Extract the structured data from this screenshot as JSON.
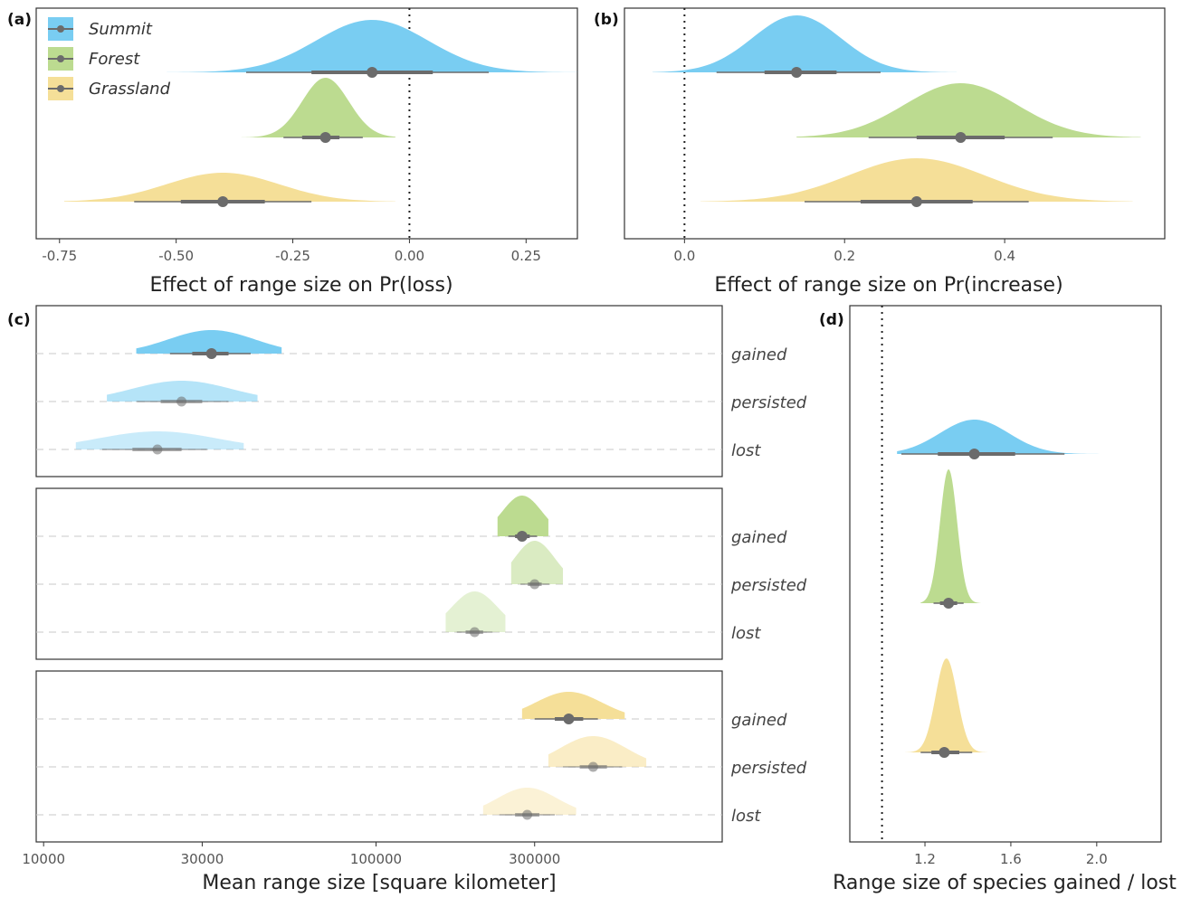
{
  "colors": {
    "summit": "#79cdf2",
    "forest": "#bcdb90",
    "grassland": "#f5df98",
    "point": "#6b6b6b"
  },
  "legend": [
    {
      "key": "summit",
      "label": "Summit"
    },
    {
      "key": "forest",
      "label": "Forest"
    },
    {
      "key": "grassland",
      "label": "Grassland"
    }
  ],
  "chart_data": [
    {
      "panel": "(a)",
      "type": "area",
      "xlabel": "Effect of range size on Pr(loss)",
      "xlim": [
        -0.8,
        0.36
      ],
      "xticks": [
        -0.75,
        -0.5,
        -0.25,
        0.0,
        0.25
      ],
      "xtick_labels": [
        "-0.75",
        "-0.50",
        "-0.25",
        "0.00",
        "0.25"
      ],
      "reference_line": 0,
      "series": [
        {
          "name": "Summit",
          "color": "summit",
          "mean": -0.08,
          "sd": 0.12,
          "min": -0.52,
          "max": 0.4,
          "median": -0.08,
          "inner": [
            -0.21,
            0.05
          ],
          "outer": [
            -0.35,
            0.17
          ]
        },
        {
          "name": "Forest",
          "color": "forest",
          "mean": -0.18,
          "sd": 0.05,
          "min": -0.36,
          "max": -0.03,
          "median": -0.18,
          "inner": [
            -0.23,
            -0.15
          ],
          "outer": [
            -0.27,
            -0.1
          ]
        },
        {
          "name": "Grassland",
          "color": "grassland",
          "mean": -0.4,
          "sd": 0.12,
          "min": -0.74,
          "max": -0.03,
          "median": -0.4,
          "inner": [
            -0.49,
            -0.31
          ],
          "outer": [
            -0.59,
            -0.21
          ]
        }
      ]
    },
    {
      "panel": "(b)",
      "type": "area",
      "xlabel": "Effect of range size on Pr(increase)",
      "xlim": [
        -0.075,
        0.6
      ],
      "xticks": [
        0.0,
        0.2,
        0.4
      ],
      "xtick_labels": [
        "0.0",
        "0.2",
        "0.4"
      ],
      "reference_line": 0,
      "series": [
        {
          "name": "Summit",
          "color": "summit",
          "mean": 0.14,
          "sd": 0.055,
          "min": -0.04,
          "max": 0.34,
          "median": 0.14,
          "inner": [
            0.1,
            0.19
          ],
          "outer": [
            0.04,
            0.245
          ]
        },
        {
          "name": "Forest",
          "color": "forest",
          "mean": 0.345,
          "sd": 0.07,
          "min": 0.14,
          "max": 0.57,
          "median": 0.345,
          "inner": [
            0.29,
            0.4
          ],
          "outer": [
            0.23,
            0.46
          ]
        },
        {
          "name": "Grassland",
          "color": "grassland",
          "mean": 0.29,
          "sd": 0.085,
          "min": 0.02,
          "max": 0.56,
          "median": 0.29,
          "inner": [
            0.22,
            0.36
          ],
          "outer": [
            0.15,
            0.43
          ]
        }
      ]
    },
    {
      "panel": "(c)",
      "type": "area",
      "xlabel": "Mean range size [square kilometer]",
      "xscale": "log",
      "xlim": [
        9500,
        1100000
      ],
      "xticks": [
        10000,
        30000,
        100000,
        300000
      ],
      "xtick_labels": [
        "10000",
        "30000",
        "100000",
        "300000"
      ],
      "row_labels": [
        "gained",
        "persisted",
        "lost"
      ],
      "groups": [
        {
          "name": "Summit",
          "color": "summit",
          "rows": [
            {
              "label": "gained",
              "median": 32000,
              "sd": 0.13,
              "min": 19000,
              "max": 52000,
              "inner": [
                28000,
                36000
              ],
              "outer": [
                24000,
                42000
              ],
              "opacity": 1.0
            },
            {
              "label": "persisted",
              "median": 26000,
              "sd": 0.15,
              "min": 15500,
              "max": 44000,
              "inner": [
                22500,
                30000
              ],
              "outer": [
                19000,
                36000
              ],
              "opacity": 0.55
            },
            {
              "label": "lost",
              "median": 22000,
              "sd": 0.18,
              "min": 12500,
              "max": 40000,
              "inner": [
                18500,
                26000
              ],
              "outer": [
                15000,
                31000
              ],
              "opacity": 0.4
            }
          ]
        },
        {
          "name": "Forest",
          "color": "forest",
          "rows": [
            {
              "label": "gained",
              "median": 275000,
              "sd": 0.06,
              "min": 232000,
              "max": 330000,
              "inner": [
                262000,
                290000
              ],
              "outer": [
                250000,
                305000
              ],
              "opacity": 1.0
            },
            {
              "label": "persisted",
              "median": 300000,
              "sd": 0.06,
              "min": 255000,
              "max": 365000,
              "inner": [
                286000,
                315000
              ],
              "outer": [
                272000,
                332000
              ],
              "opacity": 0.55
            },
            {
              "label": "lost",
              "median": 198000,
              "sd": 0.07,
              "min": 162000,
              "max": 245000,
              "inner": [
                186000,
                210000
              ],
              "outer": [
                175000,
                224000
              ],
              "opacity": 0.4
            }
          ]
        },
        {
          "name": "Grassland",
          "color": "grassland",
          "rows": [
            {
              "label": "gained",
              "median": 380000,
              "sd": 0.1,
              "min": 275000,
              "max": 560000,
              "inner": [
                345000,
                420000
              ],
              "outer": [
                300000,
                465000
              ],
              "opacity": 1.0
            },
            {
              "label": "persisted",
              "median": 450000,
              "sd": 0.1,
              "min": 330000,
              "max": 650000,
              "inner": [
                410000,
                495000
              ],
              "outer": [
                365000,
                550000
              ],
              "opacity": 0.55
            },
            {
              "label": "lost",
              "median": 285000,
              "sd": 0.09,
              "min": 210000,
              "max": 400000,
              "inner": [
                262000,
                310000
              ],
              "outer": [
                235000,
                345000
              ],
              "opacity": 0.4
            }
          ]
        }
      ]
    },
    {
      "panel": "(d)",
      "type": "area",
      "xlabel": "Range size of species gained / lost",
      "xlim": [
        0.85,
        2.3
      ],
      "xticks": [
        1.2,
        1.6,
        2.0
      ],
      "xtick_labels": [
        "1.2",
        "1.6",
        "2.0"
      ],
      "reference_line": 1,
      "series": [
        {
          "name": "Summit",
          "color": "summit",
          "mean": 1.43,
          "sd": 0.16,
          "min": 1.07,
          "max": 2.25,
          "median": 1.43,
          "inner": [
            1.26,
            1.62
          ],
          "outer": [
            1.09,
            1.85
          ]
        },
        {
          "name": "Forest",
          "color": "forest",
          "mean": 1.31,
          "sd": 0.04,
          "min": 1.18,
          "max": 1.46,
          "median": 1.31,
          "inner": [
            1.27,
            1.35
          ],
          "outer": [
            1.24,
            1.38
          ]
        },
        {
          "name": "Grassland",
          "color": "grassland",
          "mean": 1.3,
          "sd": 0.05,
          "min": 1.1,
          "max": 1.55,
          "median": 1.29,
          "inner": [
            1.23,
            1.36
          ],
          "outer": [
            1.18,
            1.42
          ]
        }
      ]
    }
  ]
}
